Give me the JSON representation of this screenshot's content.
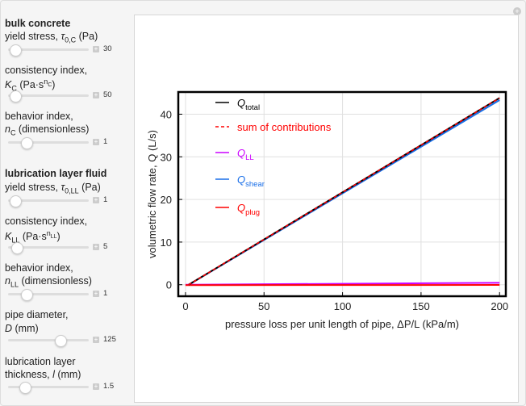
{
  "sections": [
    {
      "title": "bulk concrete"
    },
    {
      "title": "lubrication layer fluid"
    }
  ],
  "controls": [
    {
      "line1": "yield stress, ",
      "sym": "τ",
      "sub": "0,C",
      "after": " (Pa)",
      "value": "30",
      "fraction": 0.08
    },
    {
      "line1": "consistency index,",
      "sym": "K",
      "sub": "C",
      "after": " (Pa·s",
      "sup": "n",
      "supsub": "C",
      "close": ")",
      "value": "50",
      "fraction": 0.08
    },
    {
      "line1": "behavior index,",
      "sym": "n",
      "sub": "C",
      "after": " (dimensionless)",
      "value": "1",
      "fraction": 0.22
    },
    {
      "line1": "yield stress, ",
      "sym": "τ",
      "sub": "0,LL",
      "after": " (Pa)",
      "value": "1",
      "fraction": 0.08
    },
    {
      "line1": "consistency index,",
      "sym": "K",
      "sub": "LL",
      "after": " (Pa·s",
      "sup": "n",
      "supsub": "LL",
      "close": ")",
      "value": "5",
      "fraction": 0.1
    },
    {
      "line1": "behavior index,",
      "sym": "n",
      "sub": "LL",
      "after": " (dimensionless)",
      "value": "1",
      "fraction": 0.22
    },
    {
      "line1": "pipe diameter,",
      "sym": "D",
      "after": " (mm)",
      "value": "125",
      "fraction": 0.64
    },
    {
      "line1": "lubrication layer",
      "pre": "thickness, ",
      "sym": "l",
      "after": " (mm)",
      "value": "1.5",
      "fraction": 0.2
    }
  ],
  "chart_data": {
    "type": "line",
    "xlabel": "pressure loss per unit length of pipe, ΔP/L (kPa/m)",
    "ylabel": "volumetric flow rate, Q (L/s)",
    "xlim": [
      -4.6,
      204
    ],
    "ylim": [
      -2.7,
      45.2
    ],
    "xticks": [
      0,
      50,
      100,
      150,
      200
    ],
    "yticks": [
      0,
      10,
      20,
      30,
      40
    ],
    "grid": true,
    "legend": "top-left",
    "series": [
      {
        "name": "Q",
        "sub": "total",
        "color": "#000000",
        "dash": false,
        "x": [
          2,
          200
        ],
        "y": [
          0,
          43.8
        ]
      },
      {
        "name": "sum of contributions",
        "color": "#ff0000",
        "dash": true,
        "x": [
          2,
          200
        ],
        "y": [
          0,
          43.8
        ]
      },
      {
        "name": "Q",
        "sub": "LL",
        "color": "#cc00ff",
        "dash": false,
        "x": [
          0,
          200
        ],
        "y": [
          0,
          0.45
        ]
      },
      {
        "name": "Q",
        "sub": "shear",
        "color": "#1a6fe8",
        "dash": false,
        "x": [
          2,
          200
        ],
        "y": [
          0,
          43.3
        ]
      },
      {
        "name": "Q",
        "sub": "plug",
        "color": "#ff0000",
        "dash": false,
        "x": [
          0,
          200
        ],
        "y": [
          -0.1,
          -0.05
        ]
      }
    ]
  }
}
